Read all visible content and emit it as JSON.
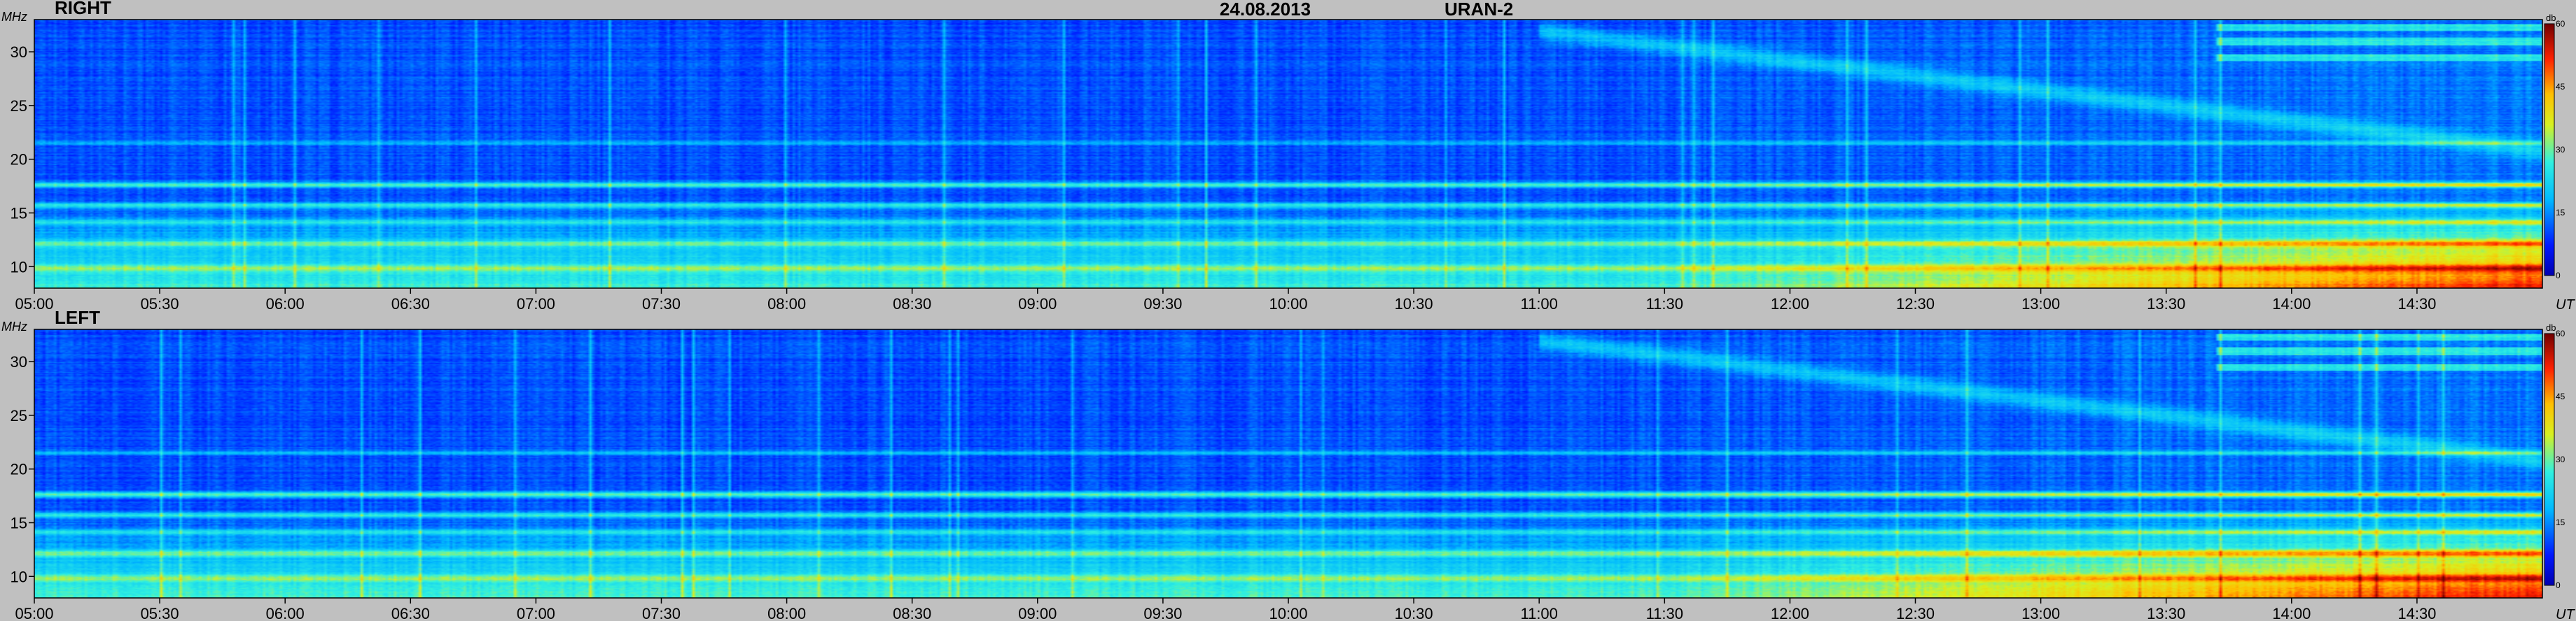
{
  "header": {
    "date": "24.08.2013",
    "instrument": "URAN-2"
  },
  "chart_data": [
    {
      "type": "heatmap",
      "panel_label": "RIGHT",
      "ylabel": "MHz",
      "xlabel": "UT",
      "x_ticks": [
        "05:00",
        "05:30",
        "06:00",
        "06:30",
        "07:00",
        "07:30",
        "08:00",
        "08:30",
        "09:00",
        "09:30",
        "10:00",
        "10:30",
        "11:00",
        "11:30",
        "12:00",
        "12:30",
        "13:00",
        "13:30",
        "14:00",
        "14:30"
      ],
      "y_ticks": [
        "10",
        "15",
        "20",
        "25",
        "30"
      ],
      "xlim": [
        "05:00",
        "15:00"
      ],
      "ylim": [
        8,
        33
      ],
      "colorbar": {
        "unit": "db",
        "ticks": [
          "0",
          "15",
          "30",
          "45",
          "60"
        ],
        "range": [
          0,
          60
        ]
      }
    },
    {
      "type": "heatmap",
      "panel_label": "LEFT",
      "ylabel": "MHz",
      "xlabel": "UT",
      "x_ticks": [
        "05:00",
        "05:30",
        "06:00",
        "06:30",
        "07:00",
        "07:30",
        "08:00",
        "08:30",
        "09:00",
        "09:30",
        "10:00",
        "10:30",
        "11:00",
        "11:30",
        "12:00",
        "12:30",
        "13:00",
        "13:30",
        "14:00",
        "14:30"
      ],
      "y_ticks": [
        "10",
        "15",
        "20",
        "25",
        "30"
      ],
      "xlim": [
        "05:00",
        "15:00"
      ],
      "ylim": [
        8,
        33
      ],
      "colorbar": {
        "unit": "db",
        "ticks": [
          "0",
          "15",
          "30",
          "45",
          "60"
        ],
        "range": [
          0,
          60
        ]
      }
    }
  ],
  "colors": {
    "background": "#c0c0c0",
    "spectrum_low": "#0a2fd8",
    "spectrum_mid": "#2fd9e8",
    "spectrum_high": "#f5f020",
    "spectrum_max": "#c81010"
  }
}
